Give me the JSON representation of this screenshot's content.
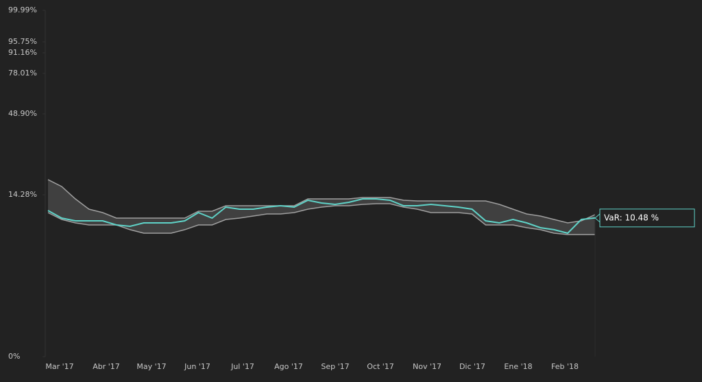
{
  "chart_data": {
    "type": "line",
    "annotation": "VaR: 10.48 %",
    "xticks": [
      "Mar '17",
      "Abr '17",
      "May '17",
      "Jun '17",
      "Jul '17",
      "Ago '17",
      "Sep '17",
      "Oct '17",
      "Nov '17",
      "Dic '17",
      "Ene '18",
      "Feb '18"
    ],
    "ylim": [
      0,
      99.99
    ],
    "yticks": [
      {
        "value": 0,
        "label": "0%"
      },
      {
        "value": 14.28,
        "label": "14.28%"
      },
      {
        "value": 48.9,
        "label": "48.90%"
      },
      {
        "value": 78.01,
        "label": "78.01%"
      },
      {
        "value": 91.16,
        "label": "91.16%"
      },
      {
        "value": 95.75,
        "label": "95.75%"
      },
      {
        "value": 99.99,
        "label": "99.99%"
      }
    ],
    "line": {
      "color": "#5fd3c8",
      "values": [
        11.63,
        10.46,
        10.05,
        10.05,
        10.05,
        9.45,
        9.26,
        9.75,
        9.75,
        9.75,
        10.05,
        11.31,
        10.46,
        12.19,
        11.85,
        11.85,
        12.19,
        12.41,
        12.19,
        13.33,
        12.87,
        12.64,
        12.98,
        13.56,
        13.56,
        13.33,
        12.41,
        12.41,
        12.64,
        12.41,
        12.19,
        11.85,
        10.05,
        9.75,
        10.26,
        9.75,
        9.06,
        8.78,
        8.31,
        10.26,
        10.48
      ]
    },
    "band": {
      "fill": "#404040",
      "stroke": "#a0a0a0",
      "upper": [
        19.2,
        16.86,
        13.56,
        11.85,
        11.31,
        10.46,
        10.46,
        10.46,
        10.46,
        10.46,
        10.46,
        11.52,
        11.52,
        12.41,
        12.41,
        12.41,
        12.41,
        12.41,
        12.41,
        13.56,
        13.56,
        13.56,
        13.56,
        13.8,
        13.8,
        13.8,
        13.33,
        13.21,
        13.21,
        13.21,
        13.21,
        13.21,
        13.21,
        12.64,
        11.85,
        11.09,
        10.78,
        10.26,
        9.75,
        10.05,
        10.99
      ],
      "lower": [
        11.31,
        10.26,
        9.75,
        9.45,
        9.45,
        9.45,
        8.78,
        8.31,
        8.31,
        8.31,
        8.78,
        9.45,
        9.45,
        10.26,
        10.46,
        10.78,
        11.09,
        11.09,
        11.31,
        11.85,
        12.19,
        12.41,
        12.41,
        12.64,
        12.75,
        12.75,
        12.19,
        11.85,
        11.31,
        11.31,
        11.31,
        11.09,
        9.45,
        9.45,
        9.45,
        9.06,
        8.78,
        8.31,
        8.12,
        8.12,
        8.12
      ]
    }
  }
}
